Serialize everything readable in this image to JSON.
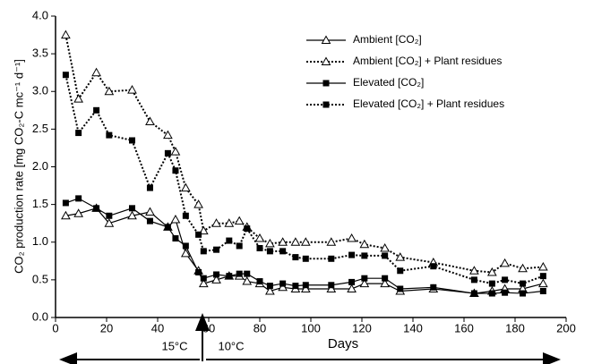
{
  "chart_data": {
    "type": "line",
    "y_label": "CO₂ production rate [mg CO₂-C mc⁻¹ d⁻¹]",
    "x_label": "Days",
    "annotations": [
      "15°C",
      "10°C"
    ],
    "x": [
      4,
      9,
      16,
      21,
      30,
      37,
      44,
      47,
      51,
      56,
      58,
      63,
      68,
      72,
      75,
      80,
      84,
      89,
      94,
      98,
      108,
      116,
      121,
      129,
      135,
      148,
      164,
      171,
      176,
      183,
      191
    ],
    "series": [
      {
        "name": "Ambient [CO₂]",
        "color": "#000000",
        "marker": "triangle",
        "dash": "solid",
        "values": [
          1.35,
          1.38,
          1.45,
          1.25,
          1.35,
          1.4,
          1.2,
          1.3,
          0.85,
          0.62,
          0.45,
          0.5,
          0.55,
          0.55,
          0.48,
          0.45,
          0.35,
          0.4,
          0.38,
          0.38,
          0.38,
          0.38,
          0.45,
          0.45,
          0.35,
          0.38,
          0.32,
          0.35,
          0.38,
          0.38,
          0.45
        ]
      },
      {
        "name": "Ambient [CO₂] + Plant residues",
        "color": "#000000",
        "marker": "triangle",
        "dash": "dotted",
        "values": [
          3.75,
          2.9,
          3.25,
          3.0,
          3.02,
          2.6,
          2.42,
          2.2,
          1.72,
          1.5,
          1.15,
          1.25,
          1.25,
          1.28,
          1.2,
          1.05,
          0.98,
          1.0,
          1.0,
          1.0,
          1.0,
          1.05,
          0.97,
          0.92,
          0.8,
          0.73,
          0.62,
          0.6,
          0.72,
          0.65,
          0.67
        ]
      },
      {
        "name": "Elevated [CO₂]",
        "color": "#000000",
        "marker": "square",
        "dash": "solid",
        "values": [
          1.52,
          1.58,
          1.45,
          1.35,
          1.45,
          1.28,
          1.2,
          1.05,
          0.95,
          0.6,
          0.52,
          0.57,
          0.55,
          0.58,
          0.58,
          0.48,
          0.42,
          0.45,
          0.42,
          0.43,
          0.43,
          0.47,
          0.52,
          0.52,
          0.38,
          0.4,
          0.32,
          0.32,
          0.33,
          0.32,
          0.35
        ]
      },
      {
        "name": "Elevated [CO₂] + Plant residues",
        "color": "#000000",
        "marker": "square",
        "dash": "dotted",
        "values": [
          3.22,
          2.45,
          2.75,
          2.42,
          2.35,
          1.72,
          2.18,
          1.95,
          1.35,
          1.1,
          0.88,
          0.9,
          1.02,
          0.95,
          1.18,
          0.92,
          0.88,
          0.88,
          0.8,
          0.78,
          0.78,
          0.83,
          0.82,
          0.82,
          0.62,
          0.68,
          0.5,
          0.45,
          0.5,
          0.45,
          0.55
        ]
      }
    ],
    "xlim": [
      0,
      200
    ],
    "xticks": [
      0,
      20,
      40,
      60,
      80,
      100,
      120,
      140,
      160,
      180,
      200
    ],
    "ylim": [
      0,
      4
    ],
    "yticks": [
      {
        "value": 0,
        "label": "0.0"
      },
      0.5,
      {
        "value": 1,
        "label": "1.0"
      },
      1.5,
      {
        "value": 2,
        "label": "2.0"
      },
      2.5,
      {
        "value": 3,
        "label": "3.0"
      },
      3.5,
      {
        "value": 4,
        "label": "4.0"
      }
    ],
    "legend": "upper right",
    "grid": false
  }
}
